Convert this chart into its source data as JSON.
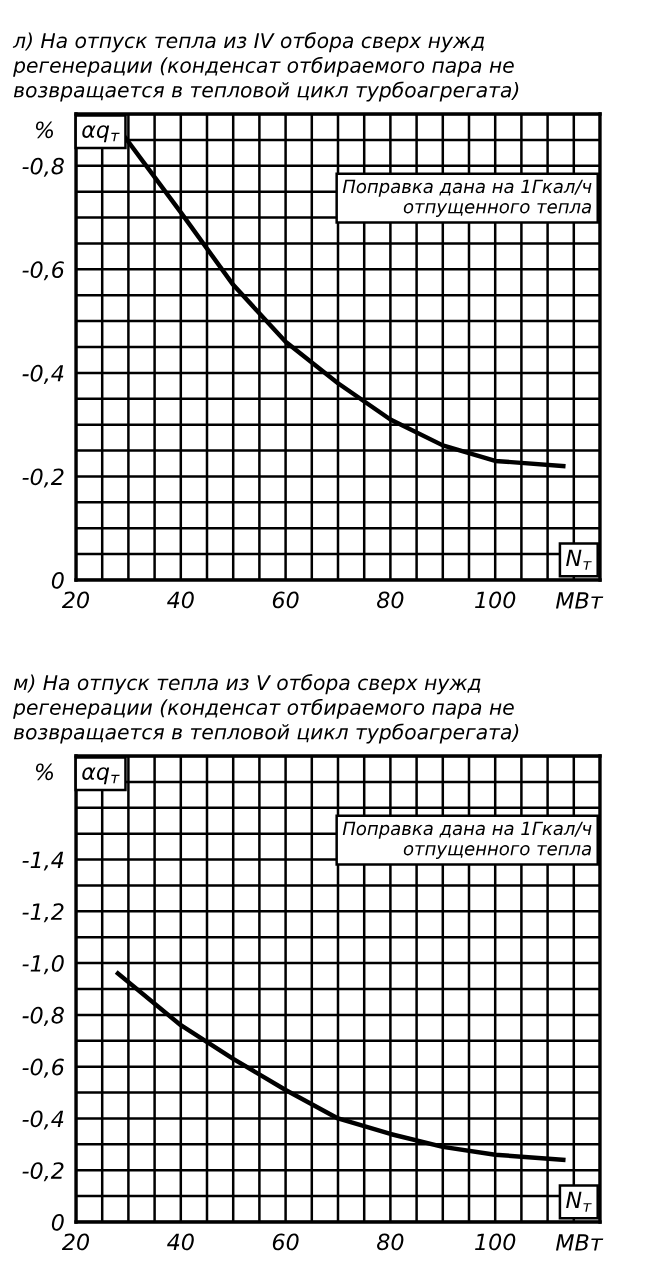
{
  "chart_data": [
    {
      "type": "line",
      "title": "л) На отпуск тепла из IV отбора сверх нужд\nрегенерации (конденсат отбираемого пара не\nвозвращается в тепловой цикл турбоагрегата)",
      "xlabel": "МВт",
      "ylabel": "%",
      "annotations": [
        "αq$_{т}$",
        "N$_{т}$",
        "Поправка дана на 1Гкал/ч\nотпущенного тепла"
      ],
      "series": [
        {
          "color": "#000000",
          "x": [
            29,
            40,
            50,
            60,
            70,
            80,
            90,
            100,
            113
          ],
          "values": [
            -0.86,
            -0.71,
            -0.57,
            -0.46,
            -0.38,
            -0.31,
            -0.26,
            -0.23,
            -0.22
          ]
        }
      ],
      "xlim": [
        20,
        120
      ],
      "ylim": [
        0,
        -0.9
      ],
      "xticks": [
        20,
        {
          "value": 25,
          "label": null
        },
        {
          "value": 30,
          "label": null
        },
        {
          "value": 35,
          "label": null
        },
        40,
        {
          "value": 45,
          "label": null
        },
        {
          "value": 50,
          "label": null
        },
        {
          "value": 55,
          "label": null
        },
        60,
        {
          "value": 65,
          "label": null
        },
        {
          "value": 70,
          "label": null
        },
        {
          "value": 75,
          "label": null
        },
        80,
        {
          "value": 85,
          "label": null
        },
        {
          "value": 90,
          "label": null
        },
        {
          "value": 95,
          "label": null
        },
        100,
        {
          "value": 105,
          "label": null
        },
        {
          "value": 110,
          "label": null
        },
        {
          "value": 115,
          "label": null
        },
        {
          "value": 120,
          "label": null
        }
      ],
      "yticks": [
        0,
        {
          "value": -0.05,
          "label": null
        },
        {
          "value": -0.1,
          "label": null
        },
        {
          "value": -0.15,
          "label": null
        },
        {
          "value": -0.2,
          "label": "-0,2"
        },
        {
          "value": -0.25,
          "label": null
        },
        {
          "value": -0.3,
          "label": null
        },
        {
          "value": -0.35,
          "label": null
        },
        {
          "value": -0.4,
          "label": "-0,4"
        },
        {
          "value": -0.45,
          "label": null
        },
        {
          "value": -0.5,
          "label": null
        },
        {
          "value": -0.55,
          "label": null
        },
        {
          "value": -0.6,
          "label": "-0,6"
        },
        {
          "value": -0.65,
          "label": null
        },
        {
          "value": -0.7,
          "label": null
        },
        {
          "value": -0.75,
          "label": null
        },
        {
          "value": -0.8,
          "label": "-0,8"
        },
        {
          "value": -0.85,
          "label": null
        },
        {
          "value": -0.9,
          "label": null
        }
      ],
      "grid": true,
      "line_style": "solid",
      "marker": "none"
    },
    {
      "type": "line",
      "title": "м) На отпуск тепла из V отбора сверх нужд\nрегенерации (конденсат отбираемого пара не\nвозвращается в тепловой цикл турбоагрегата)",
      "xlabel": "МВт",
      "ylabel": "%",
      "annotations": [
        "αq$_{т}$",
        "N$_{т}$",
        "Поправка дана на 1Гкал/ч\nотпущенного тепла"
      ],
      "series": [
        {
          "color": "#000000",
          "x": [
            28,
            40,
            50,
            60,
            70,
            80,
            90,
            100,
            113
          ],
          "values": [
            -0.96,
            -0.76,
            -0.63,
            -0.51,
            -0.4,
            -0.34,
            -0.29,
            -0.26,
            -0.24
          ]
        }
      ],
      "xlim": [
        20,
        120
      ],
      "ylim": [
        0,
        -1.8
      ],
      "xticks": [
        20,
        {
          "value": 25,
          "label": null
        },
        {
          "value": 30,
          "label": null
        },
        {
          "value": 35,
          "label": null
        },
        40,
        {
          "value": 45,
          "label": null
        },
        {
          "value": 50,
          "label": null
        },
        {
          "value": 55,
          "label": null
        },
        60,
        {
          "value": 65,
          "label": null
        },
        {
          "value": 70,
          "label": null
        },
        {
          "value": 75,
          "label": null
        },
        80,
        {
          "value": 85,
          "label": null
        },
        {
          "value": 90,
          "label": null
        },
        {
          "value": 95,
          "label": null
        },
        100,
        {
          "value": 105,
          "label": null
        },
        {
          "value": 110,
          "label": null
        },
        {
          "value": 115,
          "label": null
        },
        {
          "value": 120,
          "label": null
        }
      ],
      "yticks": [
        0,
        {
          "value": -0.1,
          "label": null
        },
        {
          "value": -0.2,
          "label": "-0,2"
        },
        {
          "value": -0.3,
          "label": null
        },
        {
          "value": -0.4,
          "label": "-0,4"
        },
        {
          "value": -0.5,
          "label": null
        },
        {
          "value": -0.6,
          "label": "-0,6"
        },
        {
          "value": -0.7,
          "label": null
        },
        {
          "value": -0.8,
          "label": "-0,8"
        },
        {
          "value": -0.9,
          "label": null
        },
        {
          "value": -1.0,
          "label": "-1,0"
        },
        {
          "value": -1.1,
          "label": null
        },
        {
          "value": -1.2,
          "label": "-1,2"
        },
        {
          "value": -1.3,
          "label": null
        },
        {
          "value": -1.4,
          "label": "-1,4"
        },
        {
          "value": -1.5,
          "label": null
        },
        {
          "value": -1.6,
          "label": null
        },
        {
          "value": -1.7,
          "label": null
        },
        {
          "value": -1.8,
          "label": null
        }
      ],
      "grid": true,
      "line_style": "solid",
      "marker": "none"
    }
  ]
}
